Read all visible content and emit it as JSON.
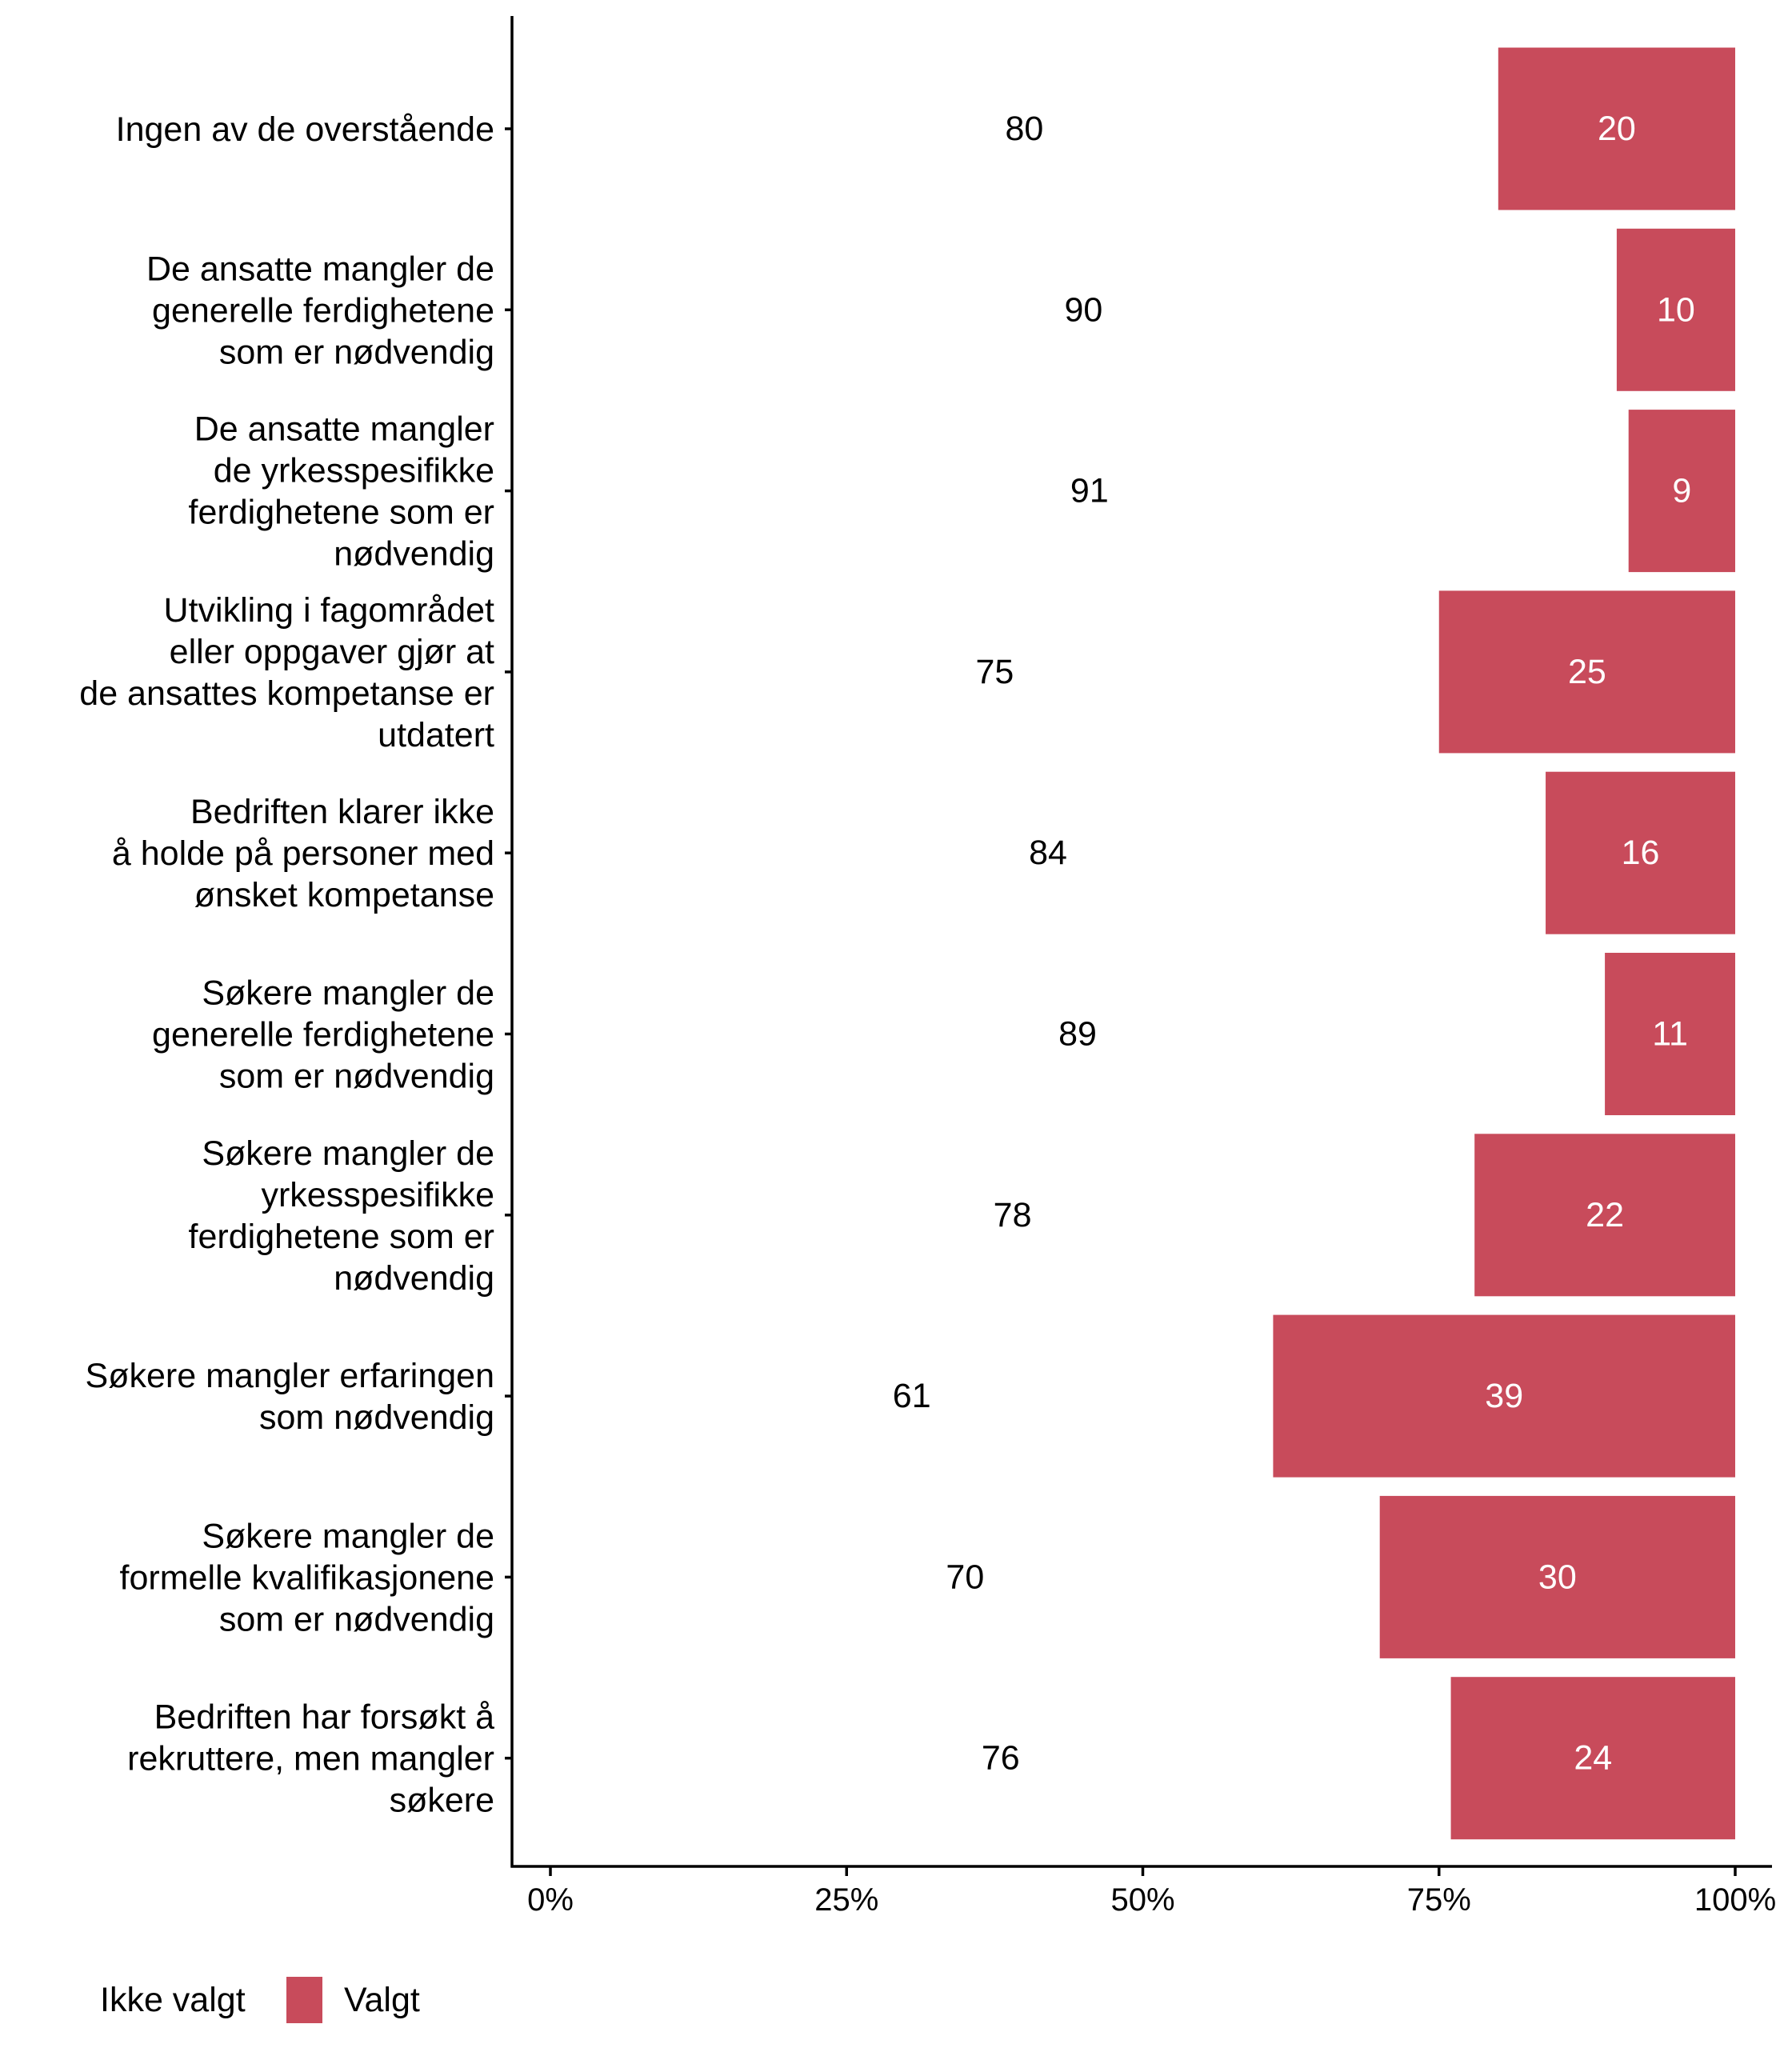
{
  "chart_data": {
    "type": "bar",
    "orientation": "horizontal",
    "stacked": true,
    "title": "",
    "xlabel": "",
    "ylabel": "",
    "xlim": [
      0,
      100
    ],
    "x_ticks": [
      "0%",
      "25%",
      "50%",
      "75%",
      "100%"
    ],
    "x_tick_values": [
      0,
      25,
      50,
      75,
      100
    ],
    "grid": false,
    "legend_position": "bottom-left",
    "categories": [
      [
        "Ingen av de overstående"
      ],
      [
        "De ansatte mangler de",
        "generelle ferdighetene",
        "som er nødvendig"
      ],
      [
        "De ansatte mangler",
        "de yrkesspesifikke",
        "ferdighetene som er",
        "nødvendig"
      ],
      [
        "Utvikling i fagområdet",
        "eller oppgaver gjør at",
        "de ansattes kompetanse er",
        "utdatert"
      ],
      [
        "Bedriften klarer ikke",
        "å holde på personer med",
        "ønsket kompetanse"
      ],
      [
        "Søkere mangler de",
        "generelle ferdighetene",
        "som er nødvendig"
      ],
      [
        "Søkere mangler de",
        "yrkesspesifikke",
        "ferdighetene som er",
        "nødvendig"
      ],
      [
        "Søkere mangler erfaringen",
        "som nødvendig"
      ],
      [
        "Søkere mangler de",
        "formelle kvalifikasjonene",
        "som er nødvendig"
      ],
      [
        "Bedriften har forsøkt å",
        "rekruttere, men mangler",
        "søkere"
      ]
    ],
    "series": [
      {
        "name": "Ikke valgt",
        "color": "#ffffff",
        "values": [
          80,
          90,
          91,
          75,
          84,
          89,
          78,
          61,
          70,
          76
        ],
        "label_color": "#000000"
      },
      {
        "name": "Valgt",
        "color": "#c84b5b",
        "values": [
          20,
          10,
          9,
          25,
          16,
          11,
          22,
          39,
          30,
          24
        ],
        "label_color": "#ffffff"
      }
    ]
  },
  "legend": {
    "items": [
      {
        "label": "Ikke valgt",
        "color": "#ffffff"
      },
      {
        "label": "Valgt",
        "color": "#c84b5b"
      }
    ]
  }
}
